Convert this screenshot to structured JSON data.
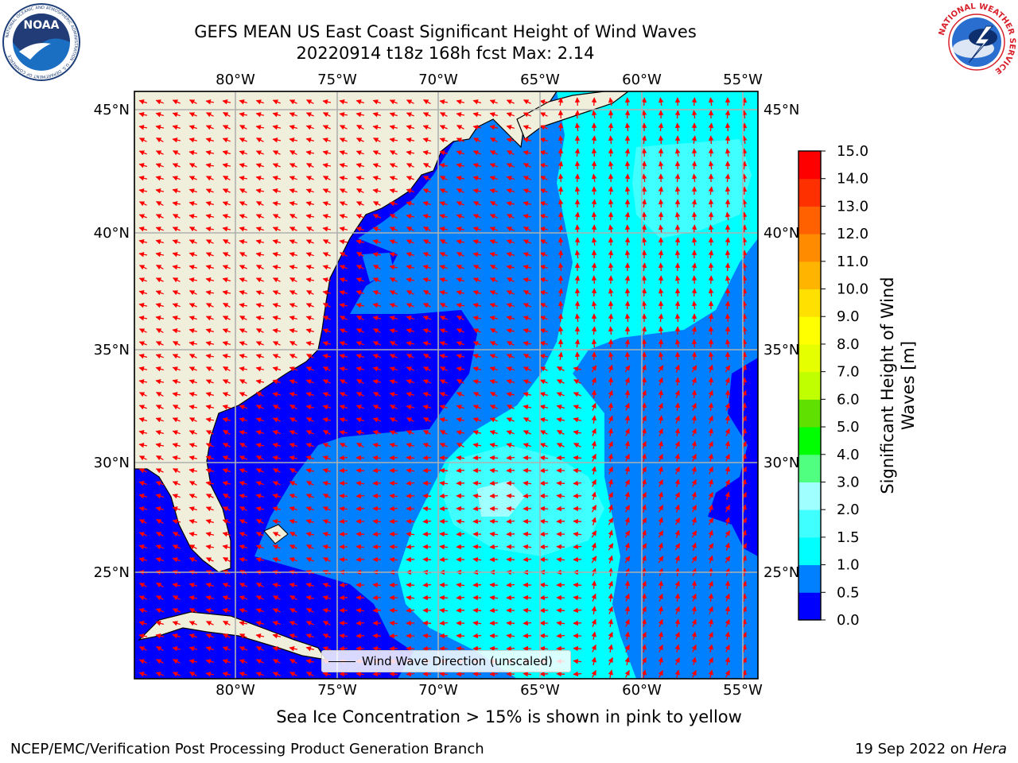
{
  "header": {
    "title_line1": "GEFS MEAN US East Coast Significant Height of Wind Waves",
    "title_line2": "20220914 t18z 168h fcst   Max: 2.14"
  },
  "logos": {
    "left": {
      "icon": "noaa-logo-icon",
      "text": "NOAA",
      "ring_text": "NATIONAL OCEANIC AND ATMOSPHERIC ADMINISTRATION · U.S. DEPARTMENT OF COMMERCE"
    },
    "right": {
      "icon": "national-weather-service-logo-icon",
      "ring_text": "NATIONAL WEATHER SERVICE"
    }
  },
  "map": {
    "lon_labels": [
      "80°W",
      "75°W",
      "70°W",
      "65°W",
      "60°W",
      "55°W"
    ],
    "lat_labels": [
      "45°N",
      "40°N",
      "35°N",
      "30°N",
      "25°N"
    ],
    "colors": {
      "land": "#efefdc",
      "coast": "#000000",
      "grid": "#b0b0b0",
      "arrow": "#ff0000"
    }
  },
  "legend": {
    "label": "Wind Wave Direction (unscaled)"
  },
  "colorbar": {
    "title": "Significant Height of Wind Waves [m]",
    "ticks": [
      "15.0",
      "14.0",
      "13.0",
      "12.0",
      "11.0",
      "10.0",
      "9.0",
      "8.0",
      "7.0",
      "6.0",
      "5.0",
      "4.0",
      "3.0",
      "2.0",
      "1.5",
      "1.0",
      "0.5",
      "0.0"
    ],
    "colors_bottom_to_top": [
      "#0000ff",
      "#0080ff",
      "#00ffff",
      "#40ffff",
      "#a0ffff",
      "#50ff80",
      "#00ff00",
      "#60e000",
      "#c0ff00",
      "#e6ff00",
      "#ffff00",
      "#ffe000",
      "#ffb400",
      "#ff8c00",
      "#ff6000",
      "#ff3000",
      "#ff0000"
    ]
  },
  "subtitle": "Sea Ice Concentration > 15% is shown in pink to yellow",
  "footer": {
    "left": "NCEP/EMC/Verification Post Processing Product Generation Branch",
    "right_date": "19 Sep 2022 on",
    "right_host": "Hera"
  }
}
